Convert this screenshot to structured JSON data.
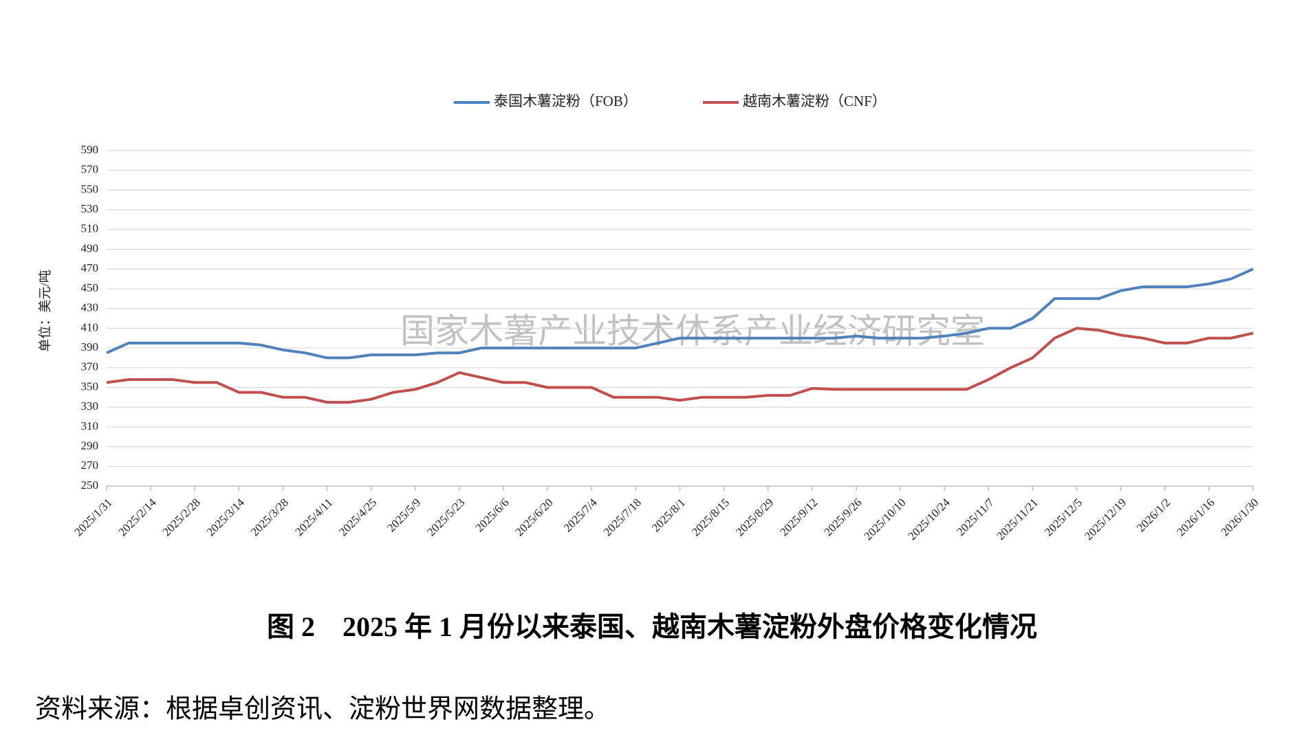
{
  "chart_data": {
    "type": "line",
    "caption": "图 2　2025 年 1 月份以来泰国、越南木薯淀粉外盘价格变化情况",
    "source": "资料来源：根据卓创资讯、淀粉世界网数据整理。",
    "watermark": "国家木薯产业技术体系产业经济研究室",
    "y_label": "单位：美元/吨",
    "categories": [
      "2025/1/31",
      null,
      "2025/2/14",
      null,
      "2025/2/28",
      null,
      "2025/3/14",
      null,
      "2025/3/28",
      null,
      "2025/4/11",
      null,
      "2025/4/25",
      null,
      "2025/5/9",
      null,
      "2025/5/23",
      null,
      "2025/6/6",
      null,
      "2025/6/20",
      null,
      "2025/7/4",
      null,
      "2025/7/18",
      null,
      "2025/8/1",
      null,
      "2025/8/15",
      null,
      "2025/8/29",
      null,
      "2025/9/12",
      null,
      "2025/9/26",
      null,
      "2025/10/10",
      null,
      "2025/10/24",
      null,
      "2025/11/7",
      null,
      "2025/11/21",
      null,
      "2025/12/5",
      null,
      "2025/12/19",
      null,
      "2026/1/2",
      null,
      "2026/1/16",
      null,
      "2026/1/30"
    ],
    "series": [
      {
        "name": "泰国木薯淀粉（FOB）",
        "color": "#4f81bd",
        "values": [
          385,
          395,
          395,
          395,
          395,
          395,
          395,
          393,
          388,
          385,
          380,
          380,
          383,
          383,
          383,
          385,
          385,
          390,
          390,
          390,
          390,
          390,
          390,
          390,
          390,
          395,
          400,
          400,
          400,
          400,
          400,
          400,
          400,
          400,
          402,
          400,
          400,
          400,
          402,
          405,
          410,
          410,
          420,
          440,
          440,
          440,
          448,
          452,
          452,
          452,
          455,
          460,
          470
        ]
      },
      {
        "name": "越南木薯淀粉（CNF）",
        "color": "#c0504d",
        "values": [
          355,
          358,
          358,
          358,
          355,
          355,
          345,
          345,
          340,
          340,
          335,
          335,
          338,
          345,
          348,
          355,
          365,
          360,
          355,
          355,
          350,
          350,
          350,
          340,
          340,
          340,
          337,
          340,
          340,
          340,
          342,
          342,
          349,
          348,
          348,
          348,
          348,
          348,
          348,
          348,
          358,
          370,
          380,
          400,
          410,
          408,
          403,
          400,
          395,
          395,
          400,
          400,
          405
        ]
      }
    ],
    "ylim": [
      250,
      590
    ],
    "yticks": [
      250,
      270,
      290,
      310,
      330,
      350,
      370,
      390,
      410,
      430,
      450,
      470,
      490,
      510,
      530,
      550,
      570,
      590
    ],
    "grid": true,
    "legend": "top"
  }
}
